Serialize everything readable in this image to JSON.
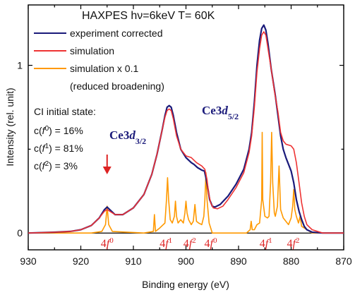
{
  "chart_data": {
    "type": "line",
    "title": "HAXPES  hν=6keV  T= 60K",
    "xlabel": "Binding energy (eV)",
    "ylabel": "Intensity (rel. unit)",
    "xlim": [
      930,
      870
    ],
    "ylim": [
      -0.1,
      1.36
    ],
    "x_reversed": true,
    "x_ticks": [
      930,
      920,
      910,
      900,
      890,
      880,
      870
    ],
    "y_ticks": [
      0,
      1
    ],
    "grid": false,
    "legend_position": "top-left",
    "colors": {
      "experiment": "#1a1a7a",
      "simulation": "#ee3333",
      "reduced": "#ff9900",
      "annotation": "#dd2222",
      "ce_label": "#1a1a7a"
    },
    "series": [
      {
        "name": "experiment corrected",
        "x": [
          930,
          925,
          922,
          920,
          918,
          916.5,
          915.5,
          915,
          914.5,
          913.5,
          912,
          910,
          908,
          906.5,
          905.5,
          904.5,
          904,
          903.6,
          903.2,
          902.8,
          902.4,
          901.8,
          901,
          900,
          899,
          898.5,
          897.8,
          897,
          896.5,
          896.2,
          895.8,
          895.5,
          895,
          894.5,
          893.5,
          892,
          890.5,
          889,
          888,
          887.5,
          887,
          886.5,
          886,
          885.6,
          885.2,
          884.8,
          884.4,
          883.8,
          883,
          882.5,
          882,
          881.5,
          881,
          880.5,
          880,
          879.5,
          879,
          878.5,
          878,
          877.5,
          877,
          876,
          874,
          870
        ],
        "y": [
          0.0,
          0.005,
          0.01,
          0.02,
          0.045,
          0.09,
          0.14,
          0.155,
          0.14,
          0.11,
          0.11,
          0.15,
          0.23,
          0.35,
          0.47,
          0.62,
          0.7,
          0.75,
          0.76,
          0.75,
          0.7,
          0.6,
          0.5,
          0.45,
          0.42,
          0.41,
          0.39,
          0.375,
          0.37,
          0.33,
          0.26,
          0.2,
          0.16,
          0.155,
          0.17,
          0.22,
          0.29,
          0.38,
          0.5,
          0.6,
          0.78,
          1.0,
          1.15,
          1.22,
          1.24,
          1.21,
          1.13,
          0.98,
          0.82,
          0.7,
          0.58,
          0.5,
          0.45,
          0.41,
          0.37,
          0.3,
          0.2,
          0.13,
          0.08,
          0.04,
          0.02,
          0.005,
          0.0,
          0.0
        ]
      },
      {
        "name": "simulation",
        "x": [
          930,
          925,
          922,
          920,
          918,
          916.5,
          915.5,
          915,
          914.5,
          913.5,
          912,
          910,
          908,
          906.5,
          905.5,
          904.5,
          904,
          903.6,
          903.2,
          902.8,
          902.4,
          901.8,
          901,
          900,
          899,
          898,
          897,
          896.4,
          896,
          895.7,
          895.3,
          894.8,
          894,
          893,
          892,
          890.5,
          889,
          888,
          887.5,
          887,
          886.5,
          886,
          885.6,
          885.2,
          884.8,
          884.4,
          883.8,
          883.2,
          882.5,
          882,
          881.5,
          881,
          880,
          879.5,
          879,
          878.5,
          878,
          877.5,
          877,
          876,
          874,
          870
        ],
        "y": [
          0.0,
          0.005,
          0.01,
          0.02,
          0.045,
          0.09,
          0.13,
          0.14,
          0.13,
          0.11,
          0.11,
          0.15,
          0.23,
          0.35,
          0.47,
          0.62,
          0.69,
          0.73,
          0.74,
          0.73,
          0.68,
          0.58,
          0.5,
          0.46,
          0.45,
          0.42,
          0.4,
          0.38,
          0.32,
          0.24,
          0.18,
          0.15,
          0.145,
          0.16,
          0.2,
          0.27,
          0.36,
          0.48,
          0.58,
          0.75,
          0.96,
          1.1,
          1.18,
          1.2,
          1.18,
          1.1,
          0.98,
          0.85,
          0.72,
          0.6,
          0.55,
          0.53,
          0.52,
          0.5,
          0.42,
          0.3,
          0.18,
          0.1,
          0.05,
          0.02,
          0.0,
          0.0
        ]
      },
      {
        "name": "simulation x 0.1",
        "x": [
          930,
          918,
          916,
          915.3,
          915,
          914.7,
          914,
          908,
          906.2,
          906,
          905.8,
          905,
          904,
          903.7,
          903.5,
          903.3,
          903,
          902.6,
          902.2,
          902,
          901.8,
          901.5,
          901,
          900.5,
          900.2,
          900,
          899.8,
          899.5,
          899,
          898.6,
          898.3,
          898,
          897.6,
          897,
          896.6,
          896.4,
          896.2,
          896,
          895.6,
          895,
          888.5,
          887.8,
          887.6,
          887.4,
          887,
          886.5,
          886,
          885.6,
          885.5,
          885.4,
          885,
          884.5,
          884.2,
          883.9,
          883.7,
          883.5,
          883.2,
          883,
          882.6,
          882.3,
          882,
          881.5,
          881,
          880.5,
          880,
          879.7,
          879.5,
          879.3,
          879,
          878.6,
          878.3,
          878,
          876,
          870
        ],
        "y": [
          0.0,
          0.0,
          0.01,
          0.05,
          0.16,
          0.05,
          0.01,
          0.0,
          0.01,
          0.11,
          0.01,
          0.03,
          0.06,
          0.2,
          0.33,
          0.2,
          0.08,
          0.06,
          0.1,
          0.19,
          0.1,
          0.06,
          0.08,
          0.06,
          0.12,
          0.19,
          0.12,
          0.08,
          0.05,
          0.07,
          0.17,
          0.07,
          0.06,
          0.05,
          0.1,
          0.2,
          0.36,
          0.2,
          0.06,
          0.0,
          0.0,
          0.02,
          0.07,
          0.02,
          0.02,
          0.05,
          0.06,
          0.2,
          0.6,
          0.2,
          0.1,
          0.09,
          0.1,
          0.3,
          0.6,
          0.3,
          0.12,
          0.1,
          0.16,
          0.4,
          0.14,
          0.09,
          0.07,
          0.05,
          0.09,
          0.16,
          0.26,
          0.14,
          0.1,
          0.06,
          0.1,
          0.04,
          0.0,
          0.0
        ]
      }
    ],
    "legend": [
      {
        "label": "experiment corrected",
        "color": "#1a1a7a"
      },
      {
        "label": "simulation",
        "color": "#ee3333"
      },
      {
        "label": "simulation x 0.1",
        "color": "#ff9900"
      }
    ],
    "legend_note": "(reduced broadening)",
    "annotations": {
      "ci_title": "CI initial state:",
      "ci_lines": [
        {
          "base": "c(",
          "var": "f",
          "sup": "0",
          "tail": ") = 16%"
        },
        {
          "base": "c(",
          "var": "f",
          "sup": "1",
          "tail": ") = 81%"
        },
        {
          "base": "c(",
          "var": "f",
          "sup": "2",
          "tail": ") = 3%"
        }
      ],
      "ce32": {
        "base": "Ce3",
        "var": "d",
        "sub": "3/2"
      },
      "ce52": {
        "base": "Ce3",
        "var": "d",
        "sub": "5/2"
      },
      "arrow_at": 915,
      "bottom_labels": [
        {
          "x": 915,
          "num": "4",
          "var": "f",
          "sup": "0"
        },
        {
          "x": 903.8,
          "num": "4",
          "var": "f",
          "sup": "1"
        },
        {
          "x": 899.3,
          "num": "4",
          "var": "f",
          "sup": "2"
        },
        {
          "x": 895.3,
          "num": "4",
          "var": "f",
          "sup": "0"
        },
        {
          "x": 884.8,
          "num": "4",
          "var": "f",
          "sup": "1"
        },
        {
          "x": 879.6,
          "num": "4",
          "var": "f",
          "sup": "2"
        }
      ]
    }
  }
}
